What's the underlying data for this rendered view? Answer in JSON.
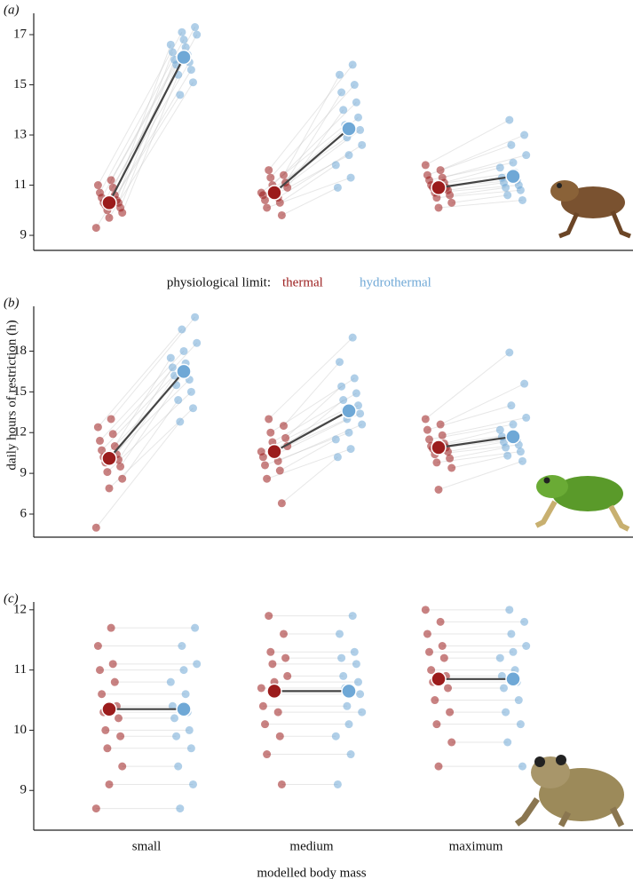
{
  "chart_data": [
    {
      "type": "dotplot",
      "panel_label": "(a)",
      "ylim": [
        8.4,
        17.85
      ],
      "yticks": [
        9,
        11,
        13,
        15,
        17
      ],
      "series": [
        {
          "color": "#9b1c1c",
          "means": [
            10.3,
            10.7,
            10.9
          ],
          "values": [
            [
              9.3,
              9.7,
              9.9,
              10.0,
              10.1,
              10.2,
              10.3,
              10.3,
              10.4,
              10.5,
              10.6,
              10.7,
              10.9,
              11.0,
              11.2
            ],
            [
              9.8,
              10.1,
              10.3,
              10.4,
              10.5,
              10.6,
              10.7,
              10.7,
              10.8,
              10.9,
              11.0,
              11.1,
              11.3,
              11.4,
              11.6
            ],
            [
              10.1,
              10.3,
              10.5,
              10.6,
              10.7,
              10.8,
              10.9,
              10.9,
              11.0,
              11.1,
              11.2,
              11.3,
              11.4,
              11.6,
              11.8
            ]
          ]
        },
        {
          "color": "#6fa8d6",
          "means": [
            16.1,
            13.25,
            11.35
          ],
          "values": [
            [
              14.6,
              15.1,
              15.4,
              15.6,
              15.8,
              15.9,
              16.0,
              16.2,
              16.3,
              16.5,
              16.6,
              16.8,
              17.0,
              17.1,
              17.3
            ],
            [
              10.9,
              11.3,
              11.8,
              12.2,
              12.6,
              12.9,
              13.2,
              13.4,
              13.7,
              14.0,
              14.3,
              14.7,
              15.0,
              15.4,
              15.8
            ],
            [
              10.4,
              10.6,
              10.8,
              10.9,
              11.0,
              11.1,
              11.2,
              11.3,
              11.5,
              11.7,
              11.9,
              12.2,
              12.6,
              13.0,
              13.6
            ]
          ]
        }
      ]
    },
    {
      "type": "dotplot",
      "panel_label": "(b)",
      "ylabel": "daily hours of restriction (h)",
      "legend_title": "physiological limit:",
      "ylim": [
        4.3,
        21.3
      ],
      "yticks": [
        6,
        9,
        12,
        15,
        18
      ],
      "series": [
        {
          "name": "thermal",
          "color": "#9b1c1c",
          "means": [
            10.1,
            10.6,
            10.9
          ],
          "values": [
            [
              5.0,
              7.9,
              8.6,
              9.1,
              9.5,
              9.8,
              10.0,
              10.2,
              10.4,
              10.7,
              11.0,
              11.4,
              11.9,
              12.4,
              13.0
            ],
            [
              6.8,
              8.6,
              9.2,
              9.6,
              9.9,
              10.2,
              10.4,
              10.6,
              10.8,
              11.0,
              11.3,
              11.6,
              12.0,
              12.5,
              13.0
            ],
            [
              7.8,
              9.4,
              9.8,
              10.1,
              10.4,
              10.6,
              10.8,
              10.9,
              11.0,
              11.2,
              11.5,
              11.8,
              12.2,
              12.6,
              13.0
            ]
          ]
        },
        {
          "name": "hydrothermal",
          "color": "#6fa8d6",
          "means": [
            16.5,
            13.6,
            11.7
          ],
          "values": [
            [
              12.8,
              13.8,
              14.4,
              15.0,
              15.5,
              15.9,
              16.2,
              16.5,
              16.8,
              17.1,
              17.5,
              18.0,
              18.6,
              19.6,
              20.5
            ],
            [
              10.2,
              10.8,
              11.5,
              12.0,
              12.6,
              13.0,
              13.4,
              13.7,
              14.0,
              14.4,
              14.9,
              15.4,
              16.0,
              17.2,
              19.0
            ],
            [
              9.9,
              10.3,
              10.6,
              10.9,
              11.1,
              11.3,
              11.5,
              11.7,
              11.9,
              12.2,
              12.6,
              13.1,
              14.0,
              15.6,
              17.9
            ]
          ]
        }
      ]
    },
    {
      "type": "dotplot",
      "panel_label": "(c)",
      "categories": [
        "small",
        "medium",
        "maximum"
      ],
      "xlabel": "modelled body mass",
      "ylim": [
        8.34,
        12.13
      ],
      "yticks": [
        9,
        10,
        11,
        12
      ],
      "series": [
        {
          "color": "#9b1c1c",
          "means": [
            10.35,
            10.65,
            10.85
          ],
          "values": [
            [
              8.7,
              9.1,
              9.4,
              9.7,
              9.9,
              10.0,
              10.2,
              10.3,
              10.4,
              10.6,
              10.8,
              11.0,
              11.1,
              11.4,
              11.7
            ],
            [
              9.1,
              9.6,
              9.9,
              10.1,
              10.3,
              10.4,
              10.6,
              10.7,
              10.8,
              10.9,
              11.1,
              11.2,
              11.3,
              11.6,
              11.9
            ],
            [
              9.4,
              9.8,
              10.1,
              10.3,
              10.5,
              10.7,
              10.8,
              10.9,
              11.0,
              11.2,
              11.3,
              11.4,
              11.6,
              11.8,
              12.0
            ]
          ]
        },
        {
          "color": "#6fa8d6",
          "means": [
            10.35,
            10.65,
            10.85
          ],
          "values": [
            [
              8.7,
              9.1,
              9.4,
              9.7,
              9.9,
              10.0,
              10.2,
              10.3,
              10.4,
              10.6,
              10.8,
              11.0,
              11.1,
              11.4,
              11.7
            ],
            [
              9.1,
              9.6,
              9.9,
              10.1,
              10.3,
              10.4,
              10.6,
              10.7,
              10.8,
              10.9,
              11.1,
              11.2,
              11.3,
              11.6,
              11.9
            ],
            [
              9.4,
              9.8,
              10.1,
              10.3,
              10.5,
              10.7,
              10.8,
              10.9,
              11.0,
              11.2,
              11.3,
              11.4,
              11.6,
              11.8,
              12.0
            ]
          ]
        }
      ]
    }
  ]
}
